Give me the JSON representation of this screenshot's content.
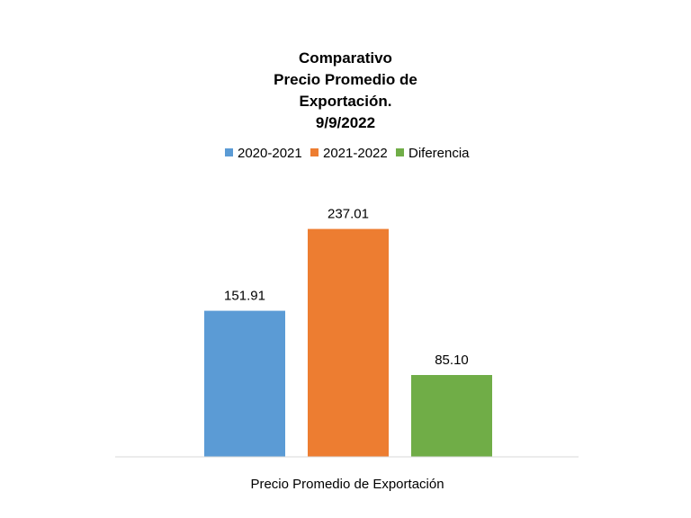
{
  "chart_data": {
    "type": "bar",
    "title_lines": [
      "Comparativo",
      "Precio Promedio de",
      "Exportación.",
      "9/9/2022"
    ],
    "categories": [
      "Precio Promedio de Exportación"
    ],
    "series": [
      {
        "name": "2020-2021",
        "values": [
          151.91
        ],
        "label": "151.91",
        "color": "#5B9BD5"
      },
      {
        "name": "2021-2022",
        "values": [
          237.01
        ],
        "label": "237.01",
        "color": "#ED7D31"
      },
      {
        "name": "Diferencia",
        "values": [
          85.1
        ],
        "label": "85.10",
        "color": "#70AD47"
      }
    ],
    "ylim": [
      0,
      260
    ],
    "grid": false,
    "legend_position": "top",
    "axis_color": "#D9D9D9"
  }
}
